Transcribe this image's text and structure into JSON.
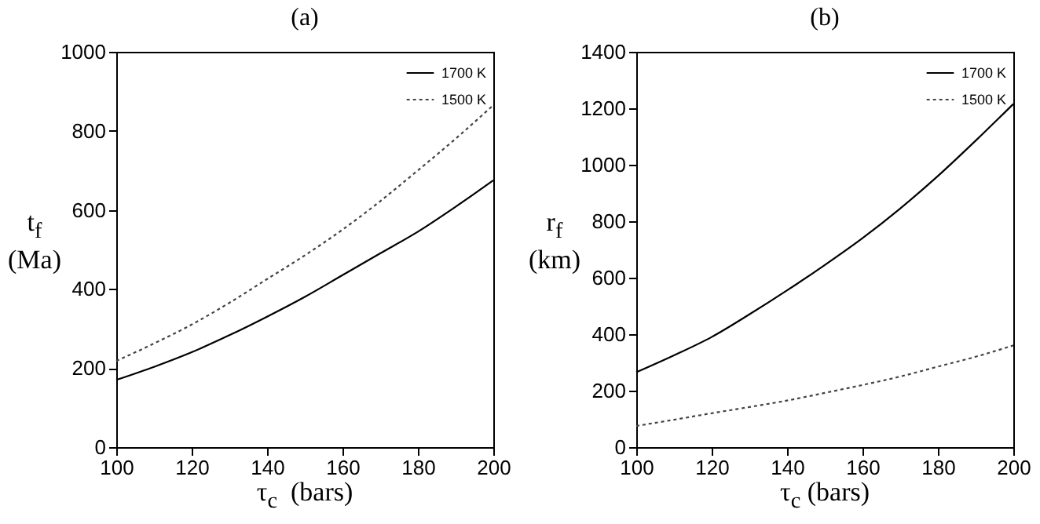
{
  "chart_data": [
    {
      "type": "line",
      "title": "(a)",
      "xlabel": "τ$_{c}$  (bars)",
      "ylabel": "t$_{f}$\n(Ma)",
      "x": [
        100,
        110,
        120,
        130,
        140,
        150,
        160,
        170,
        180,
        190,
        200
      ],
      "xlim": [
        100,
        200
      ],
      "xticks": [
        100,
        120,
        140,
        160,
        180,
        200
      ],
      "ylim": [
        0,
        1000
      ],
      "yticks": [
        0,
        200,
        400,
        600,
        800,
        1000
      ],
      "legend": "top right",
      "grid": false,
      "series": [
        {
          "name": "1700 K",
          "color": "#000000",
          "line_style": "solid",
          "values": [
            170,
            203,
            240,
            283,
            330,
            380,
            435,
            490,
            545,
            608,
            675
          ]
        },
        {
          "name": "1500 K",
          "color": "#444444",
          "line_style": "dotted",
          "values": [
            218,
            262,
            310,
            365,
            425,
            485,
            550,
            622,
            700,
            780,
            865
          ]
        }
      ]
    },
    {
      "type": "line",
      "title": "(b)",
      "xlabel": "τ$_{c}$ (bars)",
      "ylabel": "r$_{f}$\n(km)",
      "x": [
        100,
        110,
        120,
        130,
        140,
        150,
        160,
        170,
        180,
        190,
        200
      ],
      "xlim": [
        100,
        200
      ],
      "xticks": [
        100,
        120,
        140,
        160,
        180,
        200
      ],
      "ylim": [
        0,
        1400
      ],
      "yticks": [
        0,
        200,
        400,
        600,
        800,
        1000,
        1200,
        1400
      ],
      "legend": "top right",
      "grid": false,
      "series": [
        {
          "name": "1700 K",
          "color": "#000000",
          "line_style": "solid",
          "values": [
            265,
            325,
            390,
            470,
            555,
            645,
            740,
            845,
            960,
            1085,
            1215
          ]
        },
        {
          "name": "1500 K",
          "color": "#444444",
          "line_style": "dotted",
          "values": [
            75,
            97,
            120,
            142,
            165,
            192,
            220,
            250,
            285,
            320,
            360
          ]
        }
      ]
    }
  ]
}
